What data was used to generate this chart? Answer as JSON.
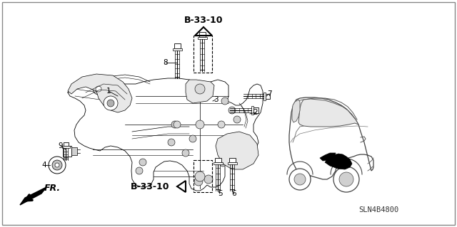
{
  "bg_color": "#ffffff",
  "part_number_label": "SLN4B4800",
  "fr_label": "FR.",
  "b33_10_top": "B-33-10",
  "b33_10_bot": "B-33-10",
  "fig_width": 6.4,
  "fig_height": 3.19,
  "dpi": 100,
  "subframe_color": "#ffffff",
  "edge_color": "#000000",
  "lw_main": 0.8,
  "lw_thin": 0.5,
  "lw_thick": 1.2,
  "car_color": "#ffffff",
  "car_edge": "#333333",
  "highlight_black": "#000000"
}
